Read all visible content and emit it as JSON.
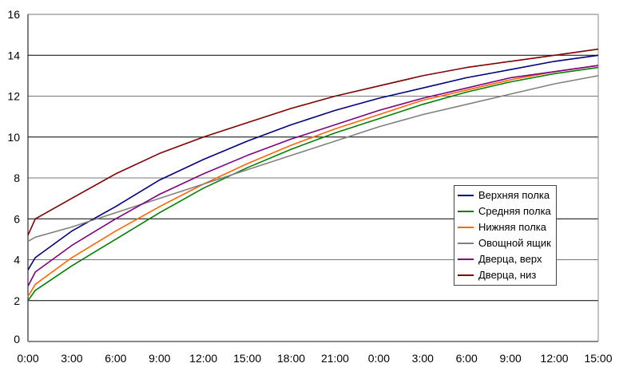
{
  "chart_data": {
    "type": "line",
    "title": "",
    "xlabel": "",
    "ylabel": "",
    "ylim": [
      0,
      16
    ],
    "yticks": [
      "0",
      "2",
      "4",
      "6",
      "8",
      "10",
      "12",
      "14",
      "16"
    ],
    "xlim_hours": [
      0,
      39
    ],
    "xticks": [
      "0:00",
      "3:00",
      "6:00",
      "9:00",
      "12:00",
      "15:00",
      "18:00",
      "21:00",
      "0:00",
      "3:00",
      "6:00",
      "9:00",
      "12:00",
      "15:00"
    ],
    "grid": true,
    "legend_position": "right-middle",
    "x_hours": [
      0,
      0.5,
      3,
      6,
      9,
      12,
      15,
      18,
      21,
      24,
      27,
      30,
      33,
      36,
      39
    ],
    "series": [
      {
        "name": "Верхняя полка",
        "color": "#000080",
        "values": [
          3.5,
          4.1,
          5.4,
          6.6,
          7.9,
          8.9,
          9.8,
          10.6,
          11.3,
          11.9,
          12.4,
          12.9,
          13.3,
          13.7,
          14.0
        ]
      },
      {
        "name": "Средняя полка",
        "color": "#008000",
        "values": [
          2.0,
          2.5,
          3.7,
          5.0,
          6.3,
          7.5,
          8.5,
          9.4,
          10.2,
          10.9,
          11.6,
          12.2,
          12.7,
          13.1,
          13.4
        ]
      },
      {
        "name": "Нижняя полка",
        "color": "#ff6600",
        "values": [
          2.2,
          2.8,
          4.1,
          5.4,
          6.6,
          7.7,
          8.7,
          9.6,
          10.4,
          11.1,
          11.8,
          12.3,
          12.8,
          13.2,
          13.5
        ]
      },
      {
        "name": "Овощной ящик",
        "color": "#808080",
        "values": [
          4.9,
          5.1,
          5.6,
          6.3,
          7.0,
          7.7,
          8.4,
          9.1,
          9.8,
          10.5,
          11.1,
          11.6,
          12.1,
          12.6,
          13.0
        ]
      },
      {
        "name": "Дверца, верх",
        "color": "#800080",
        "values": [
          2.7,
          3.4,
          4.7,
          6.0,
          7.2,
          8.2,
          9.1,
          9.9,
          10.6,
          11.3,
          11.9,
          12.4,
          12.9,
          13.2,
          13.5
        ]
      },
      {
        "name": "Дверца, низ",
        "color": "#800000",
        "values": [
          5.2,
          6.0,
          7.0,
          8.2,
          9.2,
          10.0,
          10.7,
          11.4,
          12.0,
          12.5,
          13.0,
          13.4,
          13.7,
          14.0,
          14.3
        ]
      }
    ]
  }
}
